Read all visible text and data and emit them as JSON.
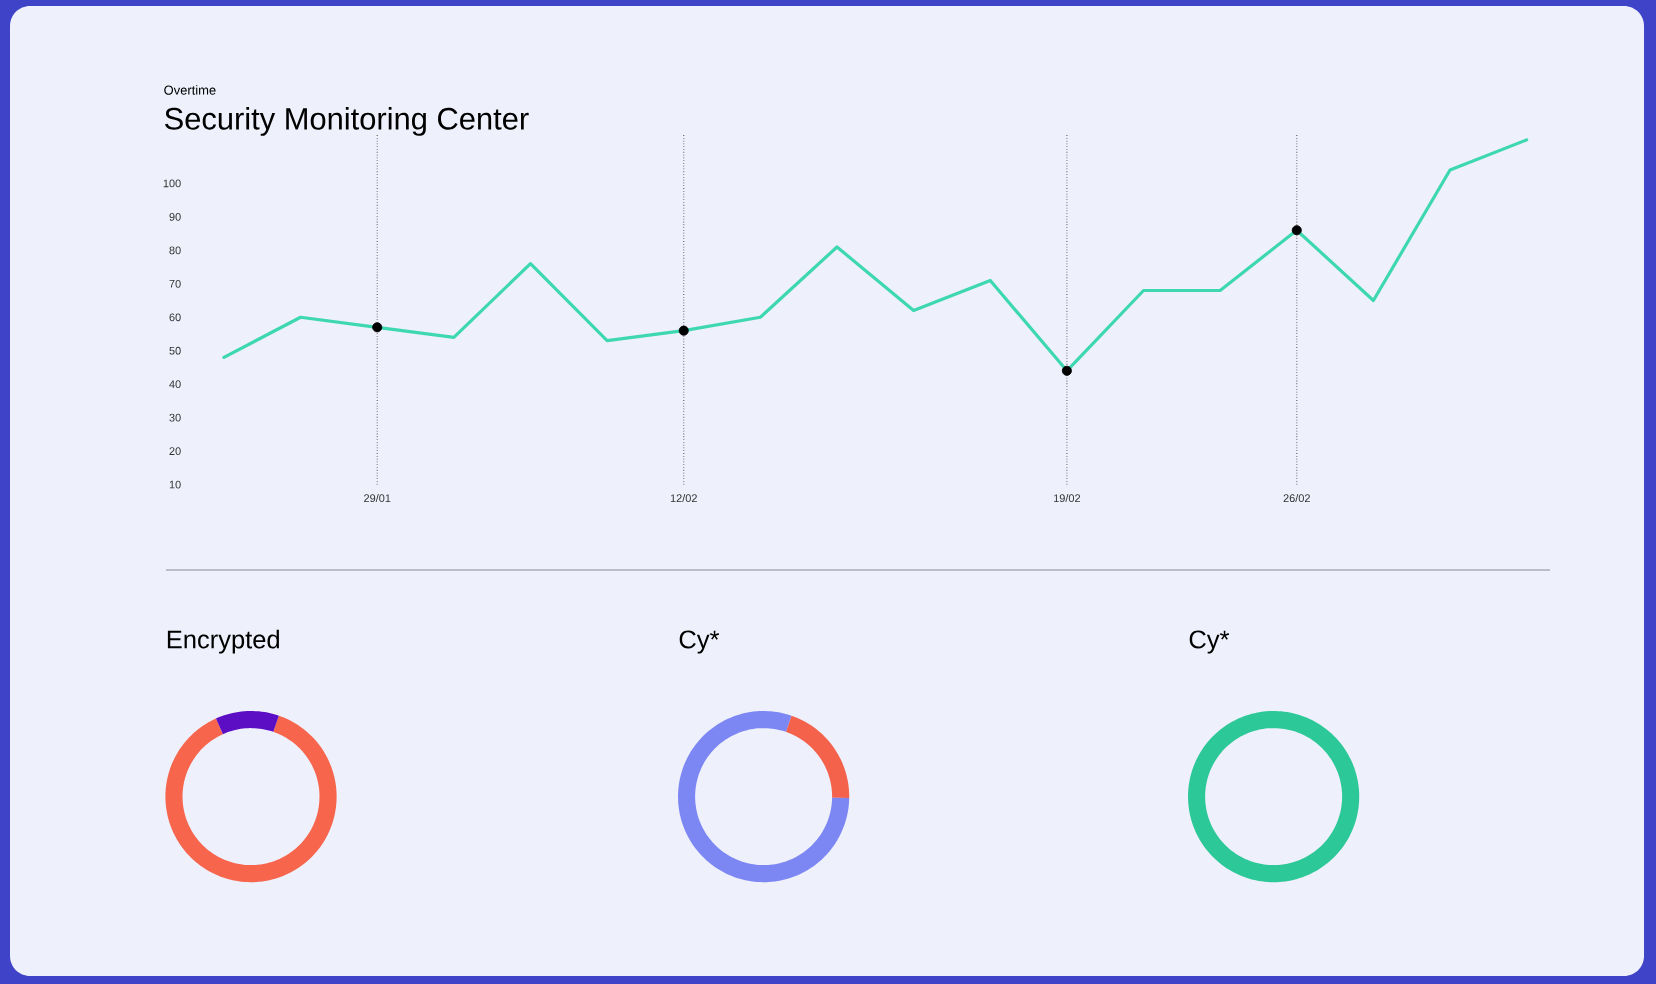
{
  "chart_data": [
    {
      "type": "line",
      "title": "Security Monitoring Center",
      "subtitle": "Overtime",
      "categories": [
        null,
        null,
        "29/01",
        null,
        null,
        null,
        "12/02",
        null,
        null,
        null,
        null,
        "19/02",
        null,
        null,
        "26/02",
        null,
        null,
        null
      ],
      "series": [
        {
          "color": "#3ed8b0",
          "values": [
            48,
            60,
            57,
            54,
            76,
            53,
            56,
            60,
            81,
            62,
            71,
            44,
            68,
            68,
            86,
            65,
            104,
            113
          ]
        },
        {
          "type": "scatter",
          "color": "#000000",
          "marker": "circle",
          "values": [
            null,
            null,
            57,
            null,
            null,
            null,
            56,
            null,
            null,
            null,
            null,
            44,
            null,
            null,
            86,
            null,
            null,
            null
          ]
        }
      ],
      "ylim": [
        10,
        115
      ],
      "yticks": [
        10,
        20,
        30,
        40,
        50,
        60,
        70,
        80,
        90,
        100
      ],
      "grid": "x"
    },
    {
      "type": "donut",
      "title": "Encrypted",
      "categories": [
        null,
        null
      ],
      "values": [
        88,
        12
      ],
      "colors": [
        "#f7654d",
        "#5c0ec4"
      ]
    },
    {
      "type": "donut",
      "title": "Cy*",
      "categories": [
        null,
        null
      ],
      "values": [
        20,
        80
      ],
      "colors": [
        "#f5624c",
        "#7d87f4"
      ]
    },
    {
      "type": "donut",
      "title": "Cy*",
      "categories": [
        null
      ],
      "values": [
        100
      ],
      "colors": [
        "#2dc897"
      ]
    }
  ]
}
